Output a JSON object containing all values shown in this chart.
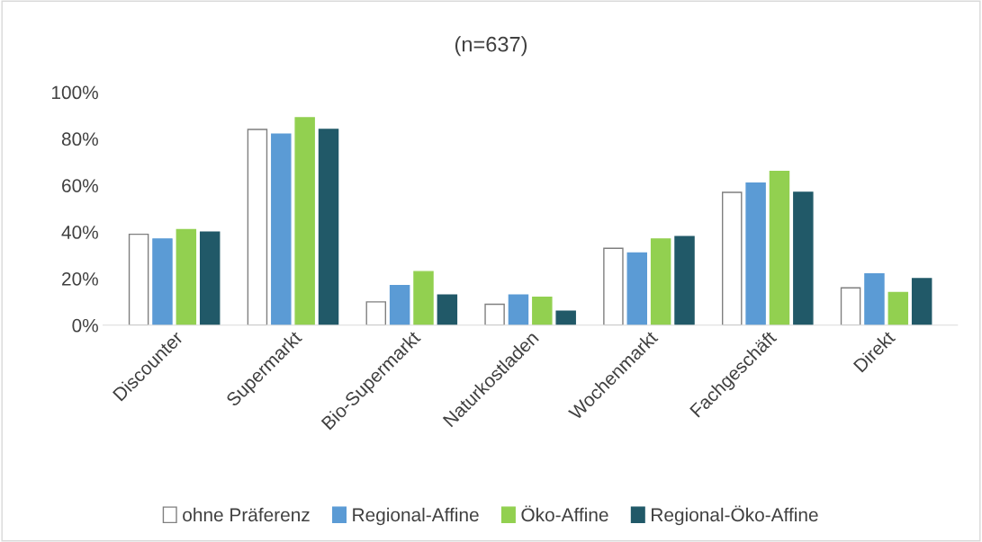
{
  "chart_data": {
    "type": "bar",
    "title": "(n=637)",
    "categories": [
      "Discounter",
      "Supermarkt",
      "Bio-Supermarkt",
      "Naturkostladen",
      "Wochenmarkt",
      "Fachgeschäft",
      "Direkt"
    ],
    "series": [
      {
        "name": "ohne Präferenz",
        "color": "#ffffff",
        "values": [
          39,
          84,
          10,
          9,
          33,
          57,
          16
        ]
      },
      {
        "name": "Regional-Affine",
        "color": "#5b9bd5",
        "values": [
          37,
          82,
          17,
          13,
          31,
          61,
          22
        ]
      },
      {
        "name": "Öko-Affine",
        "color": "#92d050",
        "values": [
          41,
          89,
          23,
          12,
          37,
          66,
          14
        ]
      },
      {
        "name": "Regional-Öko-Affine",
        "color": "#215968",
        "values": [
          40,
          84,
          13,
          6,
          38,
          57,
          20
        ]
      }
    ],
    "ylim": [
      0,
      100
    ],
    "yticks": [
      {
        "value": 0,
        "label": "0%"
      },
      {
        "value": 20,
        "label": "20%"
      },
      {
        "value": 40,
        "label": "40%"
      },
      {
        "value": 60,
        "label": "60%"
      },
      {
        "value": 80,
        "label": "80%"
      },
      {
        "value": 100,
        "label": "100%"
      }
    ],
    "grid": false,
    "legend": "bottom"
  }
}
